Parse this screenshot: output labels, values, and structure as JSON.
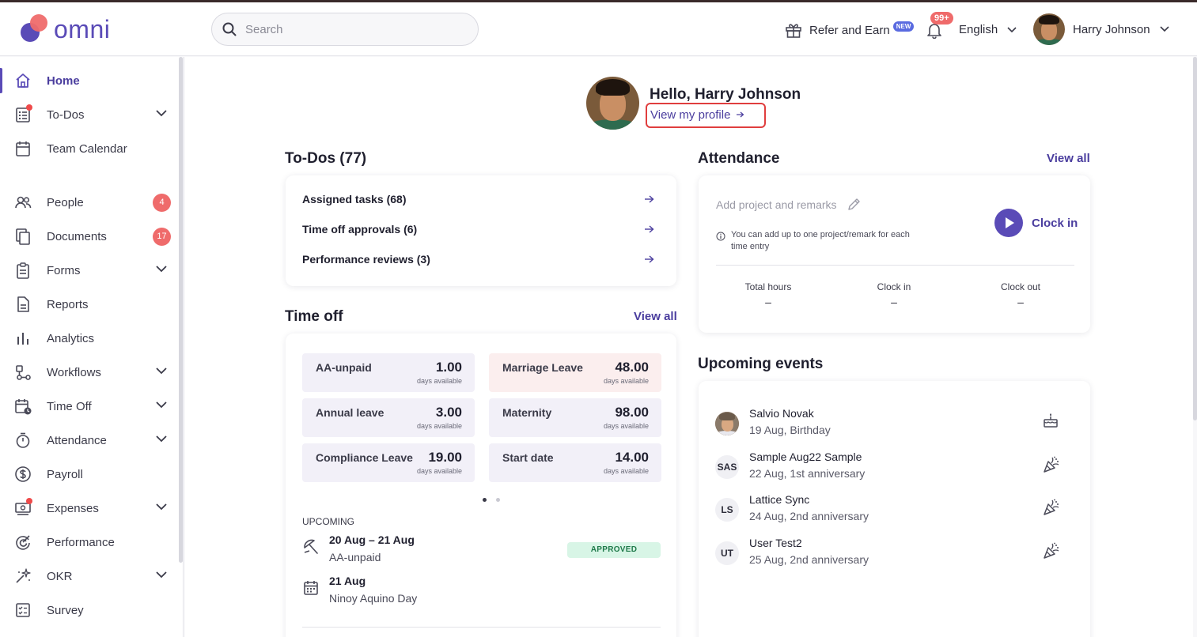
{
  "app": {
    "logo_text": "omni",
    "brand_color": "#5a4bb7",
    "accent_red": "#ef6b6b"
  },
  "header": {
    "search_placeholder": "Search",
    "refer_label": "Refer and Earn",
    "refer_badge": "NEW",
    "notifications_count": "99+",
    "language": "English",
    "user_name": "Harry Johnson"
  },
  "sidebar": {
    "items": [
      {
        "label": "Home",
        "icon": "home-icon",
        "active": true
      },
      {
        "label": "To-Dos",
        "icon": "todo-list-icon",
        "expandable": true,
        "dot": true
      },
      {
        "label": "Team Calendar",
        "icon": "calendar-icon"
      },
      {
        "label": "People",
        "icon": "people-icon",
        "count": "4"
      },
      {
        "label": "Documents",
        "icon": "documents-icon",
        "count": "17"
      },
      {
        "label": "Forms",
        "icon": "clipboard-icon",
        "expandable": true
      },
      {
        "label": "Reports",
        "icon": "report-icon"
      },
      {
        "label": "Analytics",
        "icon": "bar-chart-icon"
      },
      {
        "label": "Workflows",
        "icon": "workflow-icon",
        "expandable": true
      },
      {
        "label": "Time Off",
        "icon": "calendar-clock-icon",
        "expandable": true
      },
      {
        "label": "Attendance",
        "icon": "stopwatch-icon",
        "expandable": true
      },
      {
        "label": "Payroll",
        "icon": "dollar-icon"
      },
      {
        "label": "Expenses",
        "icon": "money-icon",
        "expandable": true,
        "dot": true
      },
      {
        "label": "Performance",
        "icon": "performance-icon"
      },
      {
        "label": "OKR",
        "icon": "sparkle-icon",
        "expandable": true
      },
      {
        "label": "Survey",
        "icon": "survey-icon"
      }
    ]
  },
  "greeting": {
    "hello": "Hello, Harry Johnson",
    "profile_link": "View my profile"
  },
  "todos": {
    "title": "To-Dos (77)",
    "rows": [
      {
        "label": "Assigned tasks (68)"
      },
      {
        "label": "Time off approvals (6)"
      },
      {
        "label": "Performance reviews (3)"
      }
    ]
  },
  "attendance": {
    "title": "Attendance",
    "view_all": "View all",
    "placeholder": "Add project and remarks",
    "info": "You can add up to one project/remark for each time entry",
    "clock_in_label": "Clock in",
    "columns": [
      {
        "header": "Total hours",
        "value": "–"
      },
      {
        "header": "Clock in",
        "value": "–"
      },
      {
        "header": "Clock out",
        "value": "–"
      }
    ]
  },
  "time_off": {
    "title": "Time off",
    "view_all": "View all",
    "tiles": [
      {
        "name": "AA-unpaid",
        "value": "1.00",
        "sub": "days available",
        "style": "purple"
      },
      {
        "name": "Marriage Leave",
        "value": "48.00",
        "sub": "days available",
        "style": "pink"
      },
      {
        "name": "Annual leave",
        "value": "3.00",
        "sub": "days available",
        "style": "purple"
      },
      {
        "name": "Maternity",
        "value": "98.00",
        "sub": "days available",
        "style": "purple"
      },
      {
        "name": "Compliance Leave",
        "value": "19.00",
        "sub": "days available",
        "style": "purple"
      },
      {
        "name": "Start date",
        "value": "14.00",
        "sub": "days available",
        "style": "purple"
      }
    ],
    "upcoming_label": "UPCOMING",
    "upcoming": [
      {
        "date": "20 Aug – 21 Aug",
        "type": "AA-unpaid",
        "status": "APPROVED",
        "icon": "umbrella-icon"
      },
      {
        "date": "21 Aug",
        "type": "Ninoy Aquino Day",
        "icon": "holiday-calendar-icon"
      }
    ]
  },
  "events": {
    "title": "Upcoming events",
    "items": [
      {
        "initials": "",
        "photo": true,
        "name": "Salvio Novak",
        "detail": "19 Aug, Birthday",
        "icon": "cake-icon"
      },
      {
        "initials": "SAS",
        "name": "Sample Aug22 Sample",
        "detail": "22 Aug, 1st anniversary",
        "icon": "party-popper-icon"
      },
      {
        "initials": "LS",
        "name": "Lattice Sync",
        "detail": "24 Aug, 2nd anniversary",
        "icon": "party-popper-icon"
      },
      {
        "initials": "UT",
        "name": "User Test2",
        "detail": "25 Aug, 2nd anniversary",
        "icon": "party-popper-icon"
      }
    ]
  }
}
